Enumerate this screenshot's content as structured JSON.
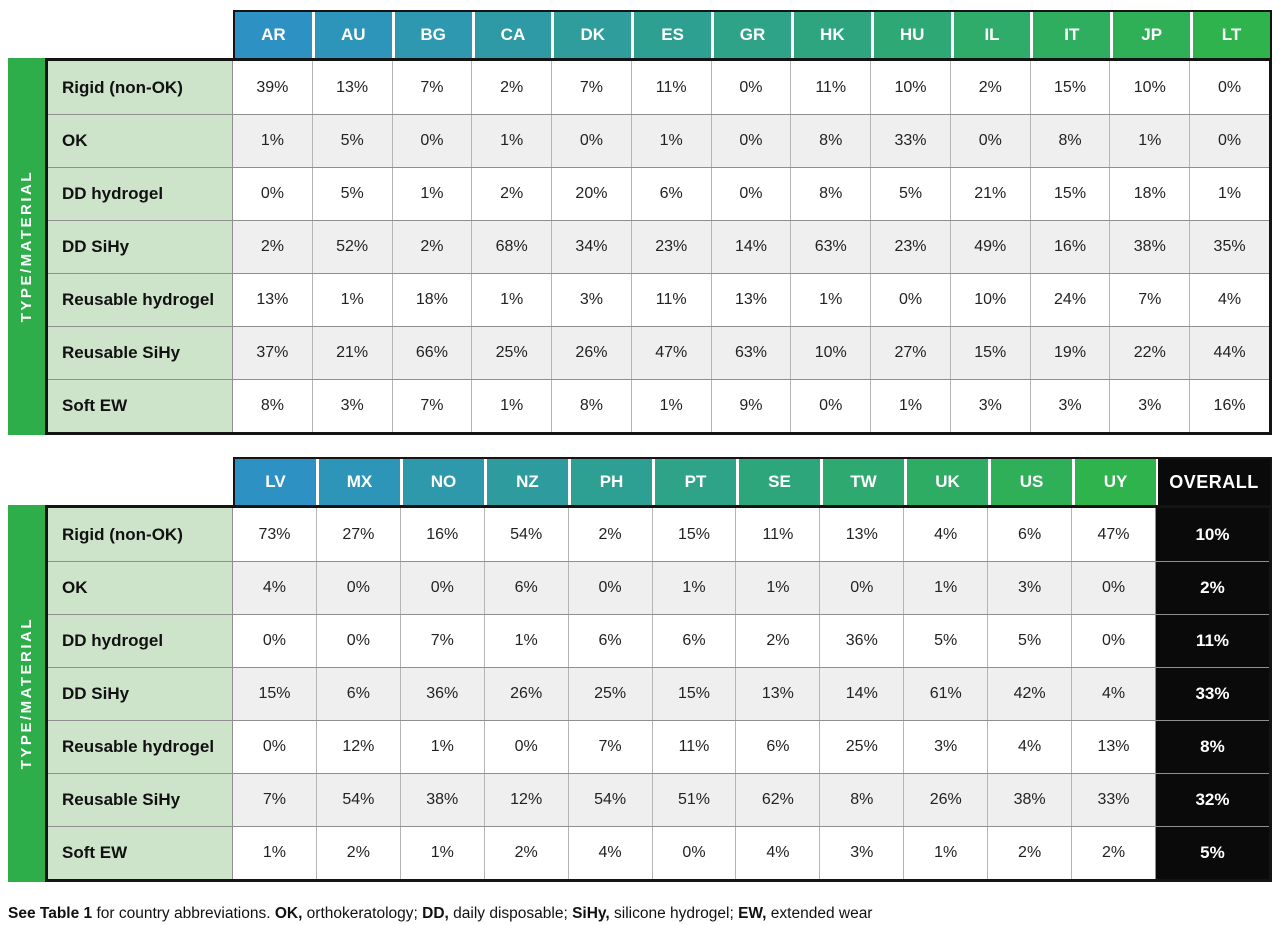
{
  "chart_data": [
    {
      "type": "table",
      "side_label": "TYPE/MATERIAL",
      "columns": [
        "AR",
        "AU",
        "BG",
        "CA",
        "DK",
        "ES",
        "GR",
        "HK",
        "HU",
        "IL",
        "IT",
        "JP",
        "LT"
      ],
      "rows": [
        {
          "label": "Rigid (non-OK)",
          "values": [
            "39%",
            "13%",
            "7%",
            "2%",
            "7%",
            "11%",
            "0%",
            "11%",
            "10%",
            "2%",
            "15%",
            "10%",
            "0%"
          ]
        },
        {
          "label": "OK",
          "values": [
            "1%",
            "5%",
            "0%",
            "1%",
            "0%",
            "1%",
            "0%",
            "8%",
            "33%",
            "0%",
            "8%",
            "1%",
            "0%"
          ]
        },
        {
          "label": "DD hydrogel",
          "values": [
            "0%",
            "5%",
            "1%",
            "2%",
            "20%",
            "6%",
            "0%",
            "8%",
            "5%",
            "21%",
            "15%",
            "18%",
            "1%"
          ]
        },
        {
          "label": "DD SiHy",
          "values": [
            "2%",
            "52%",
            "2%",
            "68%",
            "34%",
            "23%",
            "14%",
            "63%",
            "23%",
            "49%",
            "16%",
            "38%",
            "35%"
          ]
        },
        {
          "label": "Reusable hydrogel",
          "values": [
            "13%",
            "1%",
            "18%",
            "1%",
            "3%",
            "11%",
            "13%",
            "1%",
            "0%",
            "10%",
            "24%",
            "7%",
            "4%"
          ]
        },
        {
          "label": "Reusable SiHy",
          "values": [
            "37%",
            "21%",
            "66%",
            "25%",
            "26%",
            "47%",
            "63%",
            "10%",
            "27%",
            "15%",
            "19%",
            "22%",
            "44%"
          ]
        },
        {
          "label": "Soft EW",
          "values": [
            "8%",
            "3%",
            "7%",
            "1%",
            "8%",
            "1%",
            "9%",
            "0%",
            "1%",
            "3%",
            "3%",
            "3%",
            "16%"
          ]
        }
      ]
    },
    {
      "type": "table",
      "side_label": "TYPE/MATERIAL",
      "columns": [
        "LV",
        "MX",
        "NO",
        "NZ",
        "PH",
        "PT",
        "SE",
        "TW",
        "UK",
        "US",
        "UY"
      ],
      "overall_header": "OVERALL",
      "rows": [
        {
          "label": "Rigid (non-OK)",
          "values": [
            "73%",
            "27%",
            "16%",
            "54%",
            "2%",
            "15%",
            "11%",
            "13%",
            "4%",
            "6%",
            "47%"
          ],
          "overall": "10%"
        },
        {
          "label": "OK",
          "values": [
            "4%",
            "0%",
            "0%",
            "6%",
            "0%",
            "1%",
            "1%",
            "0%",
            "1%",
            "3%",
            "0%"
          ],
          "overall": "2%"
        },
        {
          "label": "DD hydrogel",
          "values": [
            "0%",
            "0%",
            "7%",
            "1%",
            "6%",
            "6%",
            "2%",
            "36%",
            "5%",
            "5%",
            "0%"
          ],
          "overall": "11%"
        },
        {
          "label": "DD SiHy",
          "values": [
            "15%",
            "6%",
            "36%",
            "26%",
            "25%",
            "15%",
            "13%",
            "14%",
            "61%",
            "42%",
            "4%"
          ],
          "overall": "33%"
        },
        {
          "label": "Reusable hydrogel",
          "values": [
            "0%",
            "12%",
            "1%",
            "0%",
            "7%",
            "11%",
            "6%",
            "25%",
            "3%",
            "4%",
            "13%"
          ],
          "overall": "8%"
        },
        {
          "label": "Reusable SiHy",
          "values": [
            "7%",
            "54%",
            "38%",
            "12%",
            "54%",
            "51%",
            "62%",
            "8%",
            "26%",
            "38%",
            "33%"
          ],
          "overall": "32%"
        },
        {
          "label": "Soft EW",
          "values": [
            "1%",
            "2%",
            "1%",
            "2%",
            "4%",
            "0%",
            "4%",
            "3%",
            "1%",
            "2%",
            "2%"
          ],
          "overall": "5%"
        }
      ]
    }
  ],
  "footnote": {
    "segments": [
      {
        "text": "See Table 1",
        "bold": true
      },
      {
        "text": " for country abbreviations. ",
        "bold": false
      },
      {
        "text": "OK,",
        "bold": true
      },
      {
        "text": " orthokeratology; ",
        "bold": false
      },
      {
        "text": "DD,",
        "bold": true
      },
      {
        "text": " daily disposable; ",
        "bold": false
      },
      {
        "text": "SiHy,",
        "bold": true
      },
      {
        "text": " silicone hydrogel; ",
        "bold": false
      },
      {
        "text": "EW,",
        "bold": true
      },
      {
        "text": " extended wear",
        "bold": false
      }
    ]
  },
  "colors": {
    "header_gradient_start": "#2d92c3",
    "header_gradient_end": "#2fb34c",
    "side_bar_green": "#2eae4b",
    "row_label_bg": "#cde4cb",
    "row_alt_bg": "#efefef",
    "overall_bg": "#0a0a0a",
    "border_dark": "#141414",
    "grid_line": "#8f8f8f"
  }
}
